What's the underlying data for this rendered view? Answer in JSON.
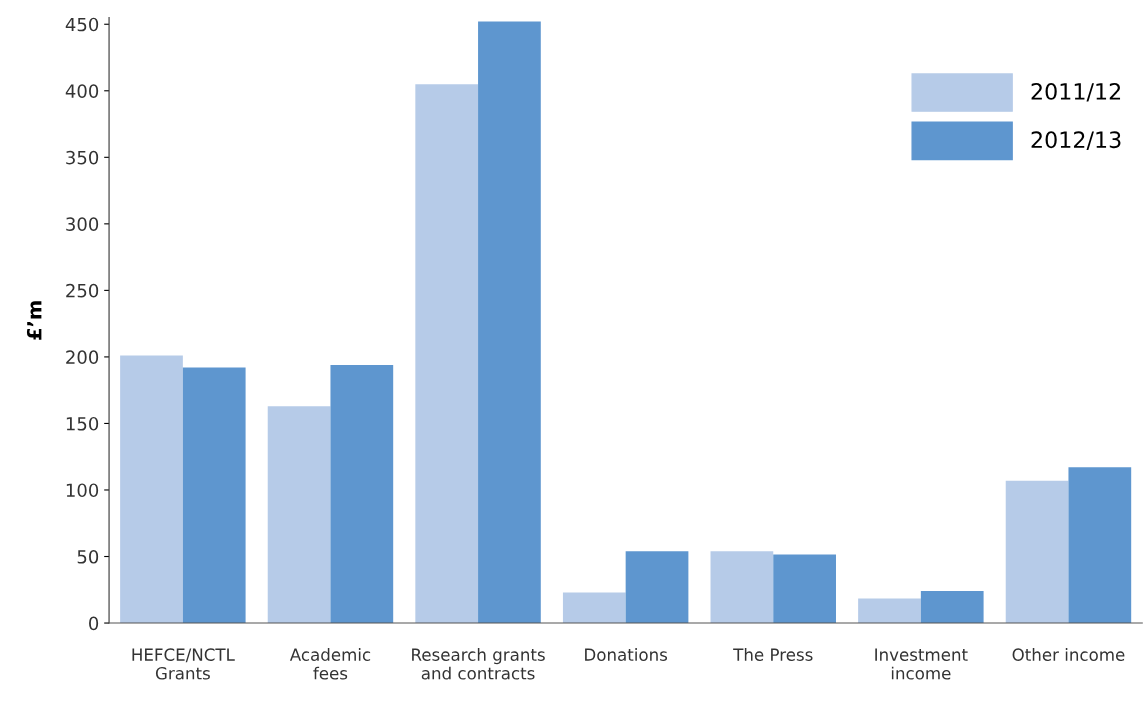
{
  "chart_data": {
    "type": "bar",
    "ylabel": "£’m",
    "categories": [
      "HEFCE/NCTL\nGrants",
      "Academic\nfees",
      "Research grants\nand contracts",
      "Donations",
      "The Press",
      "Investment\nincome",
      "Other income"
    ],
    "series": [
      {
        "name": "2011/12",
        "color": "#b6cbe8",
        "values": [
          201,
          163,
          405,
          23,
          54,
          18.5,
          107
        ]
      },
      {
        "name": "2012/13",
        "color": "#5e96cf",
        "values": [
          192,
          194,
          452,
          54,
          51.5,
          24,
          117
        ]
      }
    ],
    "ylim": [
      0,
      455
    ],
    "yticks": [
      0,
      50,
      100,
      150,
      200,
      250,
      300,
      350,
      400,
      450
    ],
    "grid": false,
    "legend": "top right"
  }
}
